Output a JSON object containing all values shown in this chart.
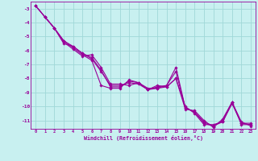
{
  "xlabel": "Windchill (Refroidissement éolien,°C)",
  "bg_color": "#c8f0f0",
  "grid_color": "#a0d8d8",
  "line_color": "#990099",
  "xlim": [
    -0.5,
    23.5
  ],
  "ylim": [
    -11.6,
    -2.5
  ],
  "yticks": [
    -11,
    -10,
    -9,
    -8,
    -7,
    -6,
    -5,
    -4,
    -3
  ],
  "xticks": [
    0,
    1,
    2,
    3,
    4,
    5,
    6,
    7,
    8,
    9,
    10,
    11,
    12,
    13,
    14,
    15,
    16,
    17,
    18,
    19,
    20,
    21,
    22,
    23
  ],
  "line1_x": [
    0,
    1,
    2,
    3,
    4,
    5,
    6,
    7,
    8,
    9,
    10,
    11,
    12,
    13,
    14,
    15,
    16,
    17,
    18,
    19,
    20,
    21,
    22,
    23
  ],
  "line1_y": [
    -2.8,
    -3.6,
    -4.4,
    -5.3,
    -5.8,
    -6.3,
    -6.7,
    -8.5,
    -8.7,
    -8.7,
    -8.1,
    -8.3,
    -8.7,
    -8.7,
    -8.5,
    -7.2,
    -10.1,
    -10.4,
    -11.2,
    -11.4,
    -11.1,
    -9.7,
    -11.3,
    -11.3
  ],
  "line2_x": [
    0,
    1,
    2,
    3,
    4,
    5,
    6,
    7,
    8,
    9,
    10,
    11,
    12,
    13,
    14,
    15,
    16,
    17,
    18,
    19,
    20,
    21,
    22,
    23
  ],
  "line2_y": [
    -2.8,
    -3.6,
    -4.4,
    -5.4,
    -5.9,
    -6.4,
    -6.3,
    -7.2,
    -8.4,
    -8.4,
    -8.5,
    -8.3,
    -8.8,
    -8.5,
    -8.6,
    -8.0,
    -10.2,
    -10.3,
    -11.0,
    -11.5,
    -10.9,
    -9.7,
    -11.1,
    -11.4
  ],
  "line3_x": [
    0,
    1,
    2,
    3,
    4,
    5,
    6,
    7,
    8,
    9,
    10,
    11,
    12,
    13,
    14,
    15,
    16,
    17,
    18,
    19,
    20,
    21,
    22,
    23
  ],
  "line3_y": [
    -2.8,
    -3.6,
    -4.4,
    -5.5,
    -5.7,
    -6.2,
    -6.6,
    -7.5,
    -8.5,
    -8.5,
    -8.3,
    -8.4,
    -8.8,
    -8.7,
    -8.6,
    -8.0,
    -10.0,
    -10.5,
    -11.3,
    -11.3,
    -11.1,
    -9.8,
    -11.2,
    -11.2
  ],
  "line4_x": [
    1,
    2,
    3,
    4,
    5,
    6,
    7,
    8,
    9,
    10,
    11,
    12,
    13,
    14,
    15,
    16,
    17,
    18,
    19,
    20,
    21,
    22,
    23
  ],
  "line4_y": [
    -3.6,
    -4.4,
    -5.3,
    -5.7,
    -6.2,
    -6.5,
    -7.4,
    -8.6,
    -8.6,
    -8.2,
    -8.3,
    -8.8,
    -8.6,
    -8.5,
    -7.5,
    -10.1,
    -10.4,
    -11.1,
    -11.4,
    -11.0,
    -9.7,
    -11.2,
    -11.3
  ]
}
